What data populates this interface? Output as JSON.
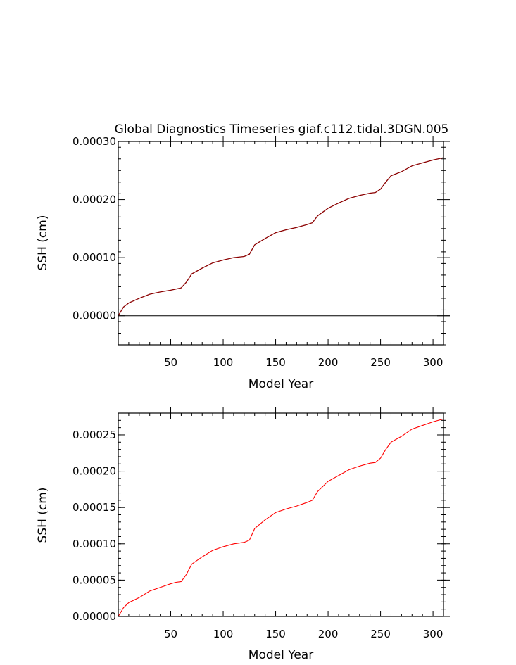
{
  "chart_data": [
    {
      "type": "line",
      "title": "Global Diagnostics Timeseries giaf.c112.tidal.3DGN.005",
      "xlabel": "Model Year",
      "ylabel": "SSH (cm)",
      "xlim": [
        0,
        310
      ],
      "ylim": [
        -5e-05,
        0.0003
      ],
      "x_ticks": [
        50,
        100,
        150,
        200,
        250,
        300
      ],
      "x_tick_labels": [
        "50",
        "100",
        "150",
        "200",
        "250",
        "300"
      ],
      "y_ticks": [
        0,
        0.0001,
        0.0002,
        0.0003
      ],
      "y_tick_labels": [
        "0.00000",
        "0.00010",
        "0.00020",
        "0.00030"
      ],
      "zero_line": true,
      "grid": false,
      "series": [
        {
          "color": "#8b0000",
          "x": [
            0,
            5,
            10,
            20,
            30,
            40,
            50,
            55,
            60,
            65,
            70,
            80,
            90,
            100,
            110,
            120,
            125,
            130,
            140,
            150,
            160,
            170,
            180,
            185,
            190,
            200,
            210,
            220,
            230,
            240,
            245,
            250,
            255,
            260,
            270,
            280,
            290,
            300,
            310
          ],
          "y": [
            0,
            1.5e-05,
            2.2e-05,
            3e-05,
            3.7e-05,
            4.1e-05,
            4.4e-05,
            4.6e-05,
            4.8e-05,
            5.8e-05,
            7.2e-05,
            8.2e-05,
            9.1e-05,
            9.6e-05,
            0.0001,
            0.000102,
            0.000106,
            0.000122,
            0.000133,
            0.000143,
            0.000148,
            0.000152,
            0.000157,
            0.00016,
            0.000172,
            0.000185,
            0.000194,
            0.000202,
            0.000207,
            0.000211,
            0.000212,
            0.000218,
            0.00023,
            0.000241,
            0.000248,
            0.000258,
            0.000263,
            0.000268,
            0.000272
          ]
        }
      ]
    },
    {
      "type": "line",
      "title": "",
      "xlabel": "Model Year",
      "ylabel": "SSH (cm)",
      "xlim": [
        0,
        310
      ],
      "ylim": [
        0,
        0.00028
      ],
      "x_ticks": [
        50,
        100,
        150,
        200,
        250,
        300
      ],
      "x_tick_labels": [
        "50",
        "100",
        "150",
        "200",
        "250",
        "300"
      ],
      "y_ticks": [
        0,
        5e-05,
        0.0001,
        0.00015,
        0.0002,
        0.00025
      ],
      "y_tick_labels": [
        "0.00000",
        "0.00005",
        "0.00010",
        "0.00015",
        "0.00020",
        "0.00025"
      ],
      "zero_line": false,
      "grid": false,
      "series": [
        {
          "color": "#ff0000",
          "x": [
            0,
            5,
            10,
            20,
            30,
            40,
            50,
            55,
            60,
            65,
            70,
            80,
            90,
            100,
            110,
            120,
            125,
            130,
            140,
            150,
            160,
            170,
            180,
            185,
            190,
            200,
            210,
            220,
            230,
            240,
            245,
            250,
            255,
            260,
            270,
            280,
            290,
            300,
            310
          ],
          "y": [
            0,
            1.2e-05,
            1.9e-05,
            2.6e-05,
            3.5e-05,
            4e-05,
            4.5e-05,
            4.7e-05,
            4.8e-05,
            5.8e-05,
            7.2e-05,
            8.2e-05,
            9.1e-05,
            9.6e-05,
            0.0001,
            0.000102,
            0.000105,
            0.000121,
            0.000133,
            0.000143,
            0.000148,
            0.000152,
            0.000157,
            0.00016,
            0.000172,
            0.000186,
            0.000194,
            0.000202,
            0.000207,
            0.000211,
            0.000212,
            0.000218,
            0.00023,
            0.00024,
            0.000248,
            0.000258,
            0.000263,
            0.000268,
            0.000272
          ]
        }
      ]
    }
  ]
}
